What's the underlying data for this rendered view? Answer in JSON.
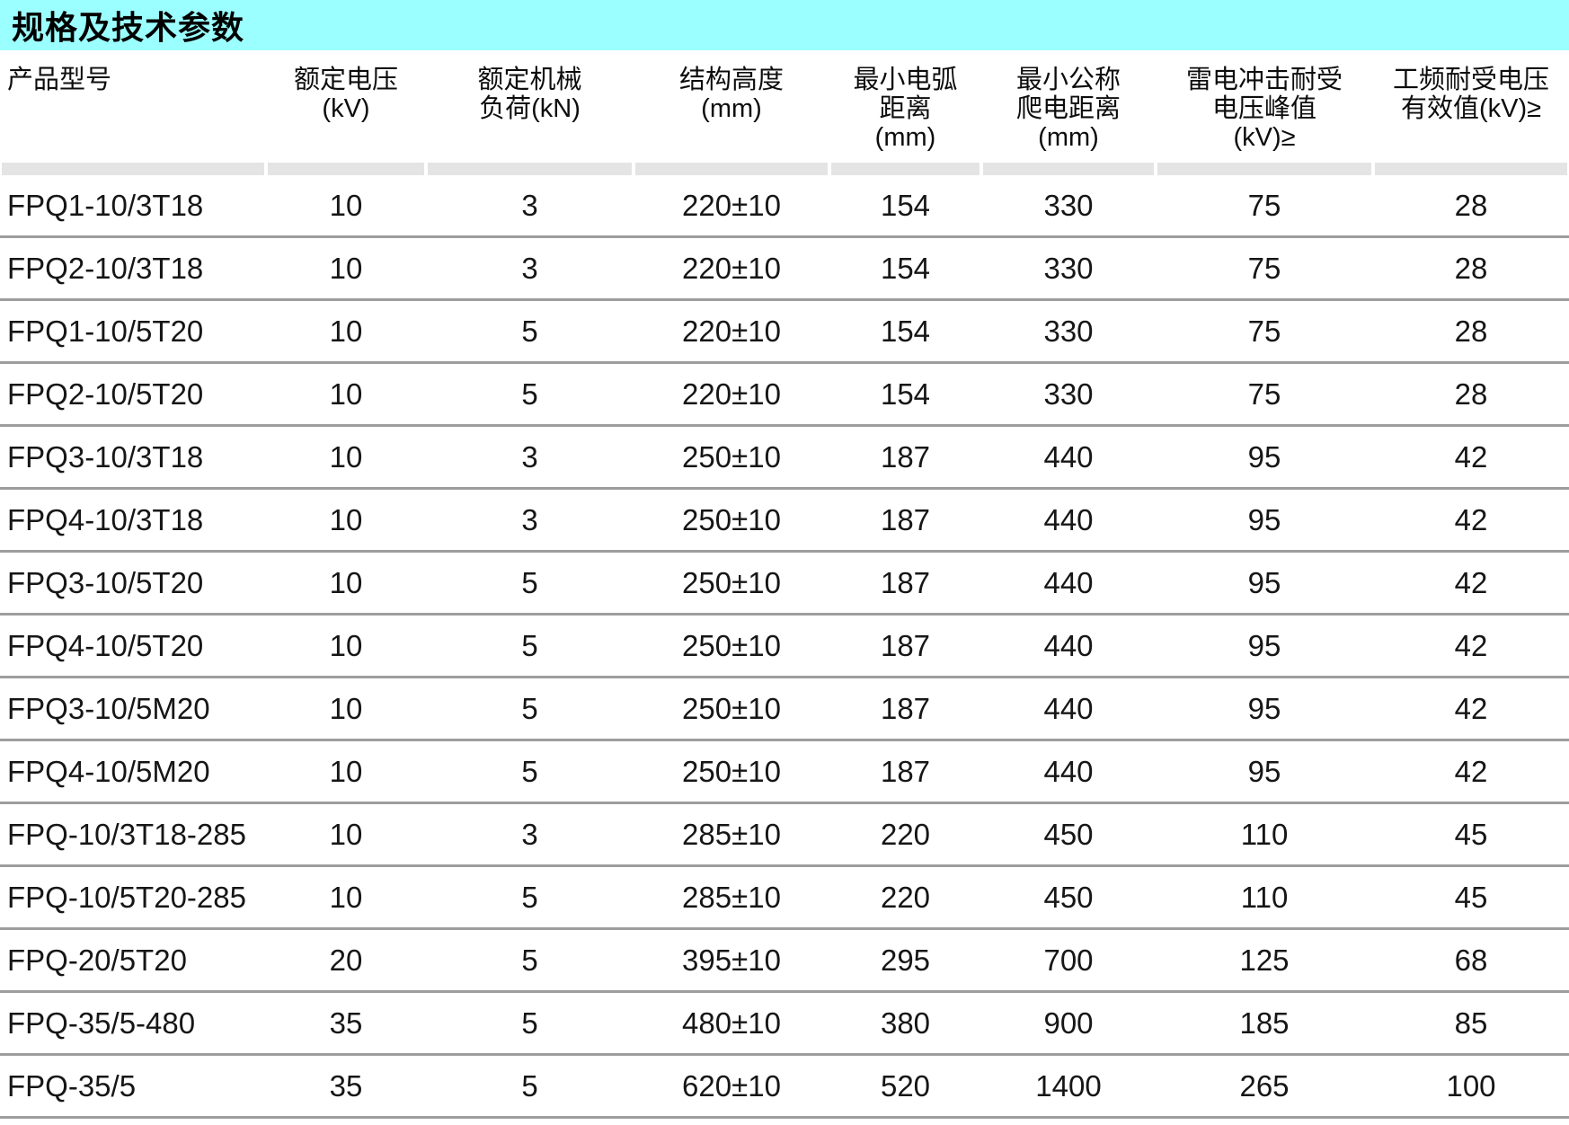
{
  "title": "规格及技术参数",
  "colors": {
    "title_bar_bg": "#9CFFFF",
    "header_strip_bg": "#E4E4E4",
    "row_separator": "#9D9D9D",
    "text": "#111111"
  },
  "table": {
    "columns": [
      {
        "id": "product-model",
        "lines": [
          "产品型号"
        ]
      },
      {
        "id": "rated-voltage",
        "lines": [
          "额定电压",
          "(kV)"
        ]
      },
      {
        "id": "rated-mechanical-load",
        "lines": [
          "额定机械",
          "负荷(kN)"
        ]
      },
      {
        "id": "structure-height",
        "lines": [
          "结构高度",
          "(mm)"
        ]
      },
      {
        "id": "min-arc-distance",
        "lines": [
          "最小电弧",
          "距离",
          "(mm)"
        ]
      },
      {
        "id": "min-nominal-creepage-distance",
        "lines": [
          "最小公称",
          "爬电距离",
          "(mm)"
        ]
      },
      {
        "id": "lightning-impulse-withstand-voltage-peak",
        "lines": [
          "雷电冲击耐受",
          "电压峰值",
          "(kV)≥"
        ]
      },
      {
        "id": "power-frequency-withstand-voltage-rms",
        "lines": [
          "工频耐受电压",
          "有效值(kV)≥"
        ]
      }
    ],
    "rows": [
      [
        "FPQ1-10/3T18",
        "10",
        "3",
        "220±10",
        "154",
        "330",
        "75",
        "28"
      ],
      [
        "FPQ2-10/3T18",
        "10",
        "3",
        "220±10",
        "154",
        "330",
        "75",
        "28"
      ],
      [
        "FPQ1-10/5T20",
        "10",
        "5",
        "220±10",
        "154",
        "330",
        "75",
        "28"
      ],
      [
        "FPQ2-10/5T20",
        "10",
        "5",
        "220±10",
        "154",
        "330",
        "75",
        "28"
      ],
      [
        "FPQ3-10/3T18",
        "10",
        "3",
        "250±10",
        "187",
        "440",
        "95",
        "42"
      ],
      [
        "FPQ4-10/3T18",
        "10",
        "3",
        "250±10",
        "187",
        "440",
        "95",
        "42"
      ],
      [
        "FPQ3-10/5T20",
        "10",
        "5",
        "250±10",
        "187",
        "440",
        "95",
        "42"
      ],
      [
        "FPQ4-10/5T20",
        "10",
        "5",
        "250±10",
        "187",
        "440",
        "95",
        "42"
      ],
      [
        "FPQ3-10/5M20",
        "10",
        "5",
        "250±10",
        "187",
        "440",
        "95",
        "42"
      ],
      [
        "FPQ4-10/5M20",
        "10",
        "5",
        "250±10",
        "187",
        "440",
        "95",
        "42"
      ],
      [
        "FPQ-10/3T18-285",
        "10",
        "3",
        "285±10",
        "220",
        "450",
        "110",
        "45"
      ],
      [
        "FPQ-10/5T20-285",
        "10",
        "5",
        "285±10",
        "220",
        "450",
        "110",
        "45"
      ],
      [
        "FPQ-20/5T20",
        "20",
        "5",
        "395±10",
        "295",
        "700",
        "125",
        "68"
      ],
      [
        "FPQ-35/5-480",
        "35",
        "5",
        "480±10",
        "380",
        "900",
        "185",
        "85"
      ],
      [
        "FPQ-35/5",
        "35",
        "5",
        "620±10",
        "520",
        "1400",
        "265",
        "100"
      ]
    ]
  }
}
